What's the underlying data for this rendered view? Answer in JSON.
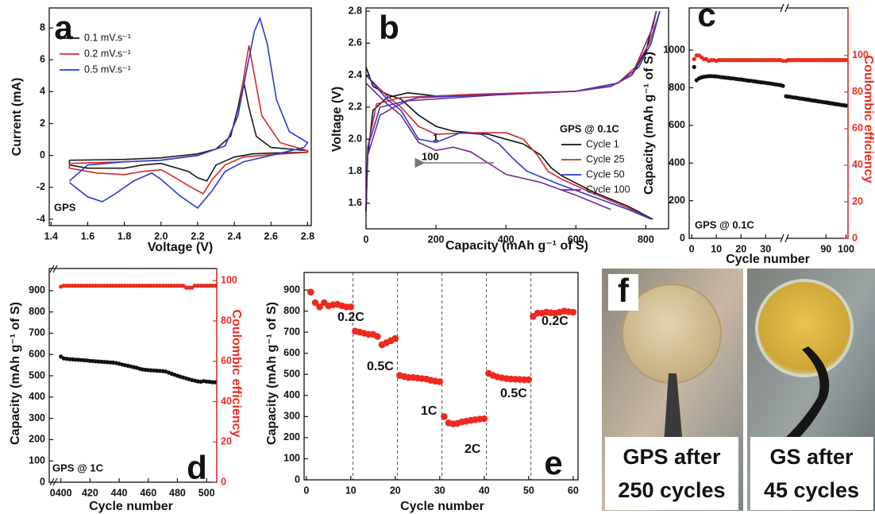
{
  "chart_data": [
    {
      "panel": "a",
      "type": "line",
      "xlabel": "Voltage (V)",
      "ylabel": "Current (mA)",
      "xlim": [
        1.39,
        2.82
      ],
      "ylim": [
        -4.4,
        9.25
      ],
      "xticks": [
        1.4,
        1.6,
        1.8,
        {
          "value": 2,
          "label": "2.0"
        },
        2.2,
        2.4,
        2.6,
        2.8
      ],
      "yticks": [
        -4,
        -2,
        0,
        2,
        4,
        6,
        8
      ],
      "legend": "upper left",
      "annotations": [
        "GPS"
      ],
      "series": [
        {
          "name": "0.1 mV.s⁻¹",
          "color": "#1a1a1a",
          "x": [
            1.5,
            1.8,
            2.0,
            2.2,
            2.3,
            2.38,
            2.42,
            2.45,
            2.48,
            2.52,
            2.6,
            2.8,
            2.8,
            2.6,
            2.5,
            2.4,
            2.3,
            2.25,
            2.2,
            2.15,
            2.0,
            1.9,
            1.8,
            1.6,
            1.5,
            1.5
          ],
          "values": [
            -0.3,
            -0.25,
            -0.15,
            0.1,
            0.4,
            1.2,
            3.0,
            4.7,
            3.0,
            1.2,
            0.5,
            0.3,
            0.2,
            0.15,
            0.1,
            -0.1,
            -0.6,
            -1.6,
            -1.4,
            -1.0,
            -0.5,
            -0.6,
            -0.8,
            -0.8,
            -0.6,
            -0.3
          ]
        },
        {
          "name": "0.2 mV.s⁻¹",
          "color": "#d42a2a",
          "x": [
            1.5,
            1.8,
            2.0,
            2.2,
            2.35,
            2.42,
            2.46,
            2.48,
            2.51,
            2.55,
            2.65,
            2.8,
            2.8,
            2.6,
            2.45,
            2.35,
            2.28,
            2.23,
            2.15,
            2.05,
            2.0,
            1.9,
            1.8,
            1.65,
            1.5,
            1.5
          ],
          "values": [
            -0.5,
            -0.4,
            -0.3,
            0,
            0.6,
            2.5,
            5.5,
            6.9,
            5.0,
            2.5,
            0.8,
            0.3,
            0.2,
            0.05,
            -0.1,
            -0.6,
            -1.5,
            -2.4,
            -1.9,
            -1.2,
            -0.9,
            -1.0,
            -1.2,
            -1.1,
            -0.8,
            -0.5
          ]
        },
        {
          "name": "0.5 mV.s⁻¹",
          "color": "#2e3ad1",
          "x": [
            1.5,
            1.6,
            1.8,
            2.0,
            2.2,
            2.35,
            2.42,
            2.47,
            2.51,
            2.54,
            2.58,
            2.63,
            2.7,
            2.8,
            2.78,
            2.6,
            2.45,
            2.35,
            2.28,
            2.2,
            2.1,
            2.0,
            1.95,
            1.85,
            1.75,
            1.68,
            1.6,
            1.5
          ],
          "values": [
            -1.6,
            -0.6,
            -0.4,
            -0.3,
            0,
            0.6,
            2.5,
            5.5,
            7.8,
            8.6,
            7.0,
            3.5,
            1.5,
            0.8,
            0.5,
            0,
            -0.4,
            -1.0,
            -2.2,
            -3.3,
            -2.5,
            -1.5,
            -1.1,
            -1.6,
            -2.4,
            -2.9,
            -2.6,
            -1.7
          ]
        }
      ]
    },
    {
      "panel": "b",
      "type": "line",
      "xlabel": "Capacity (mAh g⁻¹ of S)",
      "ylabel": "Voltage (V)",
      "xlim": [
        0,
        865
      ],
      "ylim": [
        1.44,
        2.82
      ],
      "xticks": [
        0,
        200,
        400,
        600,
        800
      ],
      "yticks": [
        1.6,
        1.8,
        {
          "value": 2,
          "label": "2.0"
        },
        2.2,
        2.4,
        2.6,
        2.8
      ],
      "legend": "center right",
      "legend_title": "GPS @ 0.1C",
      "annotations": [
        "1",
        "100"
      ],
      "series": [
        {
          "name": "Cycle 1",
          "color": "#111111",
          "x": [
            0,
            20,
            60,
            100,
            150,
            200,
            250,
            300,
            350,
            400,
            450,
            500,
            530,
            560,
            650,
            750,
            820,
            null,
            0,
            5,
            20,
            60,
            120,
            200,
            400,
            600,
            700,
            760,
            800,
            830
          ],
          "values": [
            2.45,
            2.33,
            2.28,
            2.25,
            2.15,
            2.08,
            2.05,
            2.04,
            2.03,
            2.0,
            1.97,
            1.9,
            1.82,
            1.77,
            1.67,
            1.58,
            1.5,
            null,
            1.55,
            1.9,
            2.18,
            2.26,
            2.29,
            2.27,
            2.28,
            2.3,
            2.33,
            2.4,
            2.55,
            2.8
          ]
        },
        {
          "name": "Cycle 25",
          "color": "#d42a2a",
          "x": [
            0,
            60,
            100,
            150,
            200,
            300,
            400,
            450,
            490,
            520,
            560,
            650,
            750,
            815,
            null,
            0,
            5,
            30,
            100,
            300,
            600,
            720,
            770,
            810,
            840
          ],
          "values": [
            2.4,
            2.27,
            2.2,
            2.08,
            2.03,
            2.04,
            2.04,
            2.0,
            1.9,
            1.8,
            1.75,
            1.66,
            1.57,
            1.5,
            null,
            1.55,
            1.95,
            2.22,
            2.26,
            2.28,
            2.3,
            2.35,
            2.45,
            2.6,
            2.8
          ]
        },
        {
          "name": "Cycle 50",
          "color": "#2e3ad1",
          "x": [
            0,
            60,
            100,
            150,
            200,
            270,
            330,
            380,
            420,
            460,
            550,
            650,
            750,
            815,
            null,
            0,
            5,
            40,
            80,
            150,
            400,
            600,
            720,
            780,
            815,
            840
          ],
          "values": [
            2.4,
            2.25,
            2.18,
            2.0,
            1.98,
            2.04,
            2.03,
            1.97,
            1.88,
            1.8,
            1.72,
            1.64,
            1.56,
            1.5,
            null,
            1.55,
            1.95,
            2.2,
            2.22,
            2.26,
            2.28,
            2.3,
            2.35,
            2.45,
            2.6,
            2.8
          ]
        },
        {
          "name": "Cycle 100",
          "color": "#7a2a8c",
          "x": [
            0,
            60,
            100,
            150,
            200,
            250,
            300,
            350,
            400,
            500,
            600,
            700,
            null,
            0,
            5,
            40,
            80,
            120,
            400,
            600,
            700,
            760,
            820,
            830
          ],
          "values": [
            2.35,
            2.22,
            2.15,
            1.98,
            1.93,
            1.95,
            1.92,
            1.85,
            1.78,
            1.73,
            1.65,
            1.56,
            null,
            1.55,
            1.9,
            2.15,
            2.2,
            2.24,
            2.28,
            2.3,
            2.33,
            2.4,
            2.7,
            2.8
          ]
        }
      ]
    },
    {
      "panel": "c",
      "type": "scatter",
      "xlabel": "Cycle number",
      "ylabel": "Capacity (mAh g⁻¹ of S)",
      "y2label": "Coulombic efficiency",
      "xlim": [
        -1,
        101
      ],
      "xbreak": [
        37,
        70
      ],
      "ylim": [
        0,
        1224
      ],
      "y2lim": [
        0,
        126
      ],
      "xticks": [
        0,
        10,
        20,
        30,
        90,
        100
      ],
      "yticks": [
        0,
        200,
        400,
        600,
        800,
        1000
      ],
      "y2ticks": [
        0,
        20,
        40,
        60,
        80,
        100
      ],
      "annotations": [
        "GPS @ 0.1C"
      ],
      "x": [
        1,
        2,
        3,
        4,
        5,
        6,
        7,
        8,
        9,
        10,
        11,
        12,
        13,
        14,
        15,
        16,
        17,
        18,
        19,
        20,
        21,
        22,
        23,
        24,
        25,
        26,
        27,
        28,
        29,
        30,
        31,
        32,
        33,
        34,
        35,
        36,
        37,
        70,
        71,
        72,
        73,
        74,
        75,
        76,
        77,
        78,
        79,
        80,
        81,
        82,
        83,
        84,
        85,
        86,
        87,
        88,
        89,
        90,
        91,
        92,
        93,
        94,
        95,
        96,
        97,
        98,
        99,
        100
      ],
      "series": [
        {
          "color": "#111111",
          "values": [
            910,
            840,
            850,
            855,
            858,
            860,
            862,
            862,
            861,
            860,
            858,
            856,
            855,
            853,
            852,
            850,
            849,
            847,
            845,
            844,
            842,
            840,
            838,
            837,
            835,
            833,
            831,
            829,
            828,
            826,
            824,
            822,
            820,
            818,
            816,
            814,
            810,
            755,
            753,
            752,
            750,
            748,
            747,
            745,
            743,
            742,
            740,
            738,
            737,
            735,
            733,
            732,
            730,
            728,
            727,
            725,
            723,
            722,
            720,
            718,
            717,
            715,
            713,
            712,
            710,
            708,
            707,
            705
          ]
        },
        {
          "color": "#ee2a1f",
          "axis": "y2",
          "values": [
            98,
            100,
            100,
            99,
            98,
            98,
            97,
            97.5,
            97.5,
            97,
            97.5,
            97.5,
            97.5,
            97.5,
            97.5,
            97.5,
            97.5,
            97.5,
            97.5,
            97.5,
            97.5,
            97.5,
            97.5,
            97.5,
            97.5,
            97.5,
            97.5,
            97.5,
            97.5,
            97.5,
            97.5,
            97.5,
            97.5,
            97.5,
            97.5,
            97.5,
            97,
            97,
            97.5,
            97.5,
            97.5,
            97.5,
            97.5,
            97.5,
            97.5,
            97.5,
            97.5,
            97.5,
            97.5,
            97.5,
            97.5,
            97.5,
            97.5,
            97.5,
            97.5,
            97.5,
            97.5,
            97.5,
            97.5,
            97.5,
            97.5,
            97.5,
            97.5,
            97.5,
            97.5,
            97.5,
            97.5,
            97.5
          ]
        }
      ]
    },
    {
      "panel": "d",
      "type": "scatter",
      "xlabel": "Cycle number",
      "ylabel": "Capacity (mAh g⁻¹ of S)",
      "y2label": "Coulombic efficiency",
      "xlim": [
        392,
        507
      ],
      "ylim": [
        0,
        1004
      ],
      "y2lim": [
        0,
        106
      ],
      "xticks": [
        {
          "value": 400,
          "label": "0400"
        },
        420,
        440,
        460,
        480,
        500
      ],
      "yticks": [
        0,
        100,
        200,
        300,
        400,
        500,
        600,
        700,
        800,
        900
      ],
      "y2ticks": [
        0,
        20,
        40,
        60,
        80,
        100
      ],
      "annotations": [
        "GPS @ 1C"
      ],
      "x": [
        400,
        402,
        404,
        406,
        408,
        410,
        412,
        414,
        416,
        418,
        420,
        422,
        424,
        426,
        428,
        430,
        432,
        434,
        436,
        438,
        440,
        442,
        444,
        446,
        448,
        450,
        452,
        454,
        456,
        458,
        460,
        462,
        464,
        466,
        468,
        470,
        472,
        474,
        476,
        478,
        480,
        482,
        484,
        486,
        488,
        490,
        492,
        494,
        496,
        498,
        500,
        502,
        504,
        506
      ],
      "series": [
        {
          "color": "#111111",
          "values": [
            590,
            582,
            580,
            578,
            577,
            576,
            575,
            574,
            573,
            572,
            570,
            569,
            568,
            567,
            566,
            565,
            564,
            563,
            562,
            560,
            557,
            553,
            550,
            547,
            544,
            541,
            538,
            533,
            530,
            528,
            527,
            526,
            525,
            524,
            523,
            522,
            520,
            515,
            510,
            505,
            500,
            496,
            492,
            488,
            484,
            480,
            477,
            474,
            472,
            475,
            473,
            472,
            470,
            470
          ]
        },
        {
          "color": "#ee2a1f",
          "axis": "y2",
          "values": [
            97,
            97.5,
            97.5,
            97.5,
            97.5,
            97.5,
            97.5,
            97.5,
            97.5,
            97.5,
            97.5,
            97.5,
            97.5,
            97.5,
            97.5,
            97.5,
            97.5,
            97.5,
            97.5,
            97.5,
            97.5,
            97.5,
            97.5,
            97.5,
            97.5,
            97.5,
            97.5,
            97.5,
            97.5,
            97.5,
            97.5,
            97.5,
            97.5,
            97.5,
            97.5,
            97.5,
            97.5,
            97.5,
            97.5,
            97.5,
            97.5,
            97.5,
            97.5,
            96.5,
            96.5,
            96.5,
            97.5,
            97.5,
            97.5,
            97.5,
            97.5,
            97.5,
            97.5,
            97.5
          ]
        }
      ]
    },
    {
      "panel": "e",
      "type": "scatter",
      "xlabel": "Cycle number",
      "ylabel": "Capacity (mAh g⁻¹ of S)",
      "xlim": [
        -0.5,
        61.1
      ],
      "ylim": [
        0,
        983
      ],
      "xticks": [
        0,
        10,
        20,
        30,
        40,
        50,
        60
      ],
      "yticks": [
        0,
        100,
        200,
        300,
        400,
        500,
        600,
        700,
        800,
        900
      ],
      "annotations": [
        "0.2C",
        "0.5C",
        "1C",
        "2C",
        "0.5C",
        "0.2C"
      ],
      "x": [
        1,
        2,
        3,
        4,
        5,
        6,
        7,
        8,
        9,
        10,
        11,
        12,
        13,
        14,
        15,
        16,
        17,
        18,
        19,
        20,
        21,
        22,
        23,
        24,
        25,
        26,
        27,
        28,
        29,
        30,
        31,
        32,
        33,
        34,
        35,
        36,
        37,
        38,
        39,
        40,
        41,
        42,
        43,
        44,
        45,
        46,
        47,
        48,
        49,
        50,
        51,
        52,
        53,
        54,
        55,
        56,
        57,
        58,
        59,
        60
      ],
      "series": [
        {
          "color": "#ee2a1f",
          "values": [
            890,
            840,
            820,
            840,
            825,
            830,
            832,
            825,
            820,
            820,
            705,
            700,
            695,
            690,
            690,
            680,
            640,
            650,
            660,
            670,
            495,
            490,
            485,
            485,
            483,
            480,
            478,
            472,
            468,
            465,
            300,
            270,
            265,
            268,
            275,
            278,
            282,
            285,
            288,
            290,
            505,
            495,
            488,
            484,
            480,
            478,
            477,
            476,
            475,
            475,
            775,
            790,
            790,
            795,
            792,
            790,
            795,
            800,
            797,
            795
          ]
        }
      ]
    }
  ],
  "photos": {
    "panel": "f",
    "captions": [
      [
        "GPS after",
        "250 cycles"
      ],
      [
        "GS after",
        "45 cycles"
      ]
    ]
  }
}
